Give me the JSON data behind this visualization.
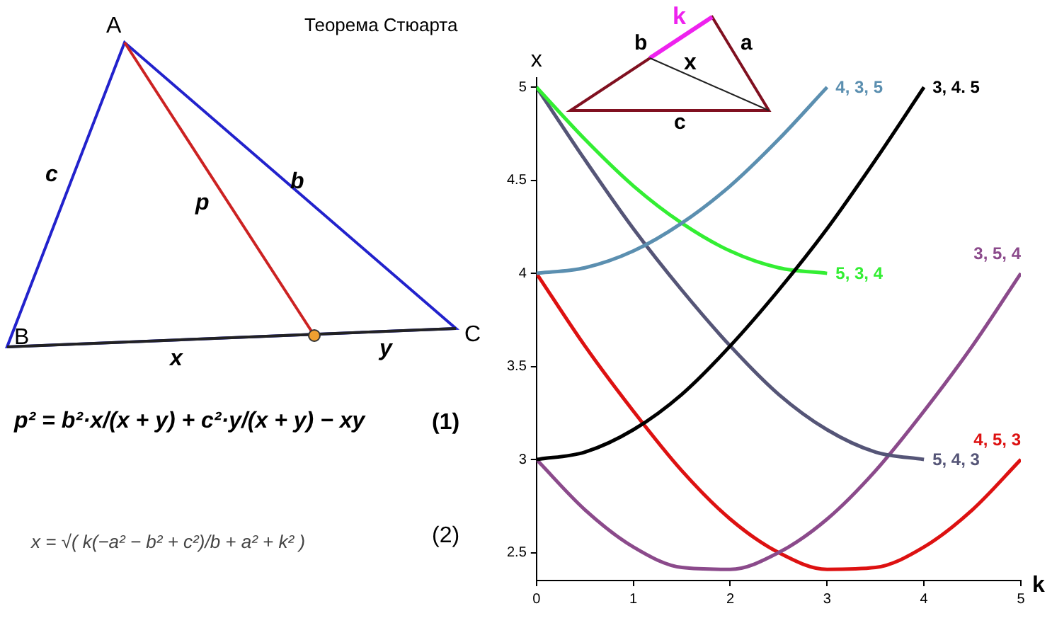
{
  "chart_data": {
    "type": "line",
    "title": "Теорема Стюарта",
    "xlabel": "k",
    "ylabel": "x",
    "xlim": [
      0,
      5
    ],
    "xticks": [
      0,
      1,
      2,
      3,
      4,
      5
    ],
    "ylim": [
      2.35,
      5.05
    ],
    "yticks": [
      2.5,
      3,
      3.5,
      4,
      4.5,
      5
    ],
    "grid": false,
    "legend": false,
    "marker": "none",
    "line_style": "solid",
    "series": [
      {
        "name": "4, 3, 5",
        "color": "#5b8fb0",
        "x": [
          0,
          0.5,
          1,
          1.5,
          2,
          2.5,
          3
        ],
        "values": [
          4,
          4.03,
          4.12,
          4.27,
          4.47,
          4.72,
          5
        ]
      },
      {
        "name": "3, 4. 5",
        "color": "#000000",
        "x": [
          0,
          0.5,
          1,
          1.5,
          2,
          2.5,
          3,
          3.5,
          4
        ],
        "values": [
          3,
          3.04,
          3.16,
          3.35,
          3.61,
          3.91,
          4.24,
          4.61,
          5
        ]
      },
      {
        "name": "5, 3, 4",
        "color": "#33ee33",
        "x": [
          0,
          0.5,
          1,
          1.5,
          2,
          2.5,
          3
        ],
        "values": [
          5,
          4.72,
          4.47,
          4.27,
          4.12,
          4.03,
          4
        ]
      },
      {
        "name": "5, 4, 3",
        "color": "#555577",
        "x": [
          0,
          0.5,
          1,
          1.5,
          2,
          2.5,
          3,
          3.5,
          4
        ],
        "values": [
          5,
          4.61,
          4.24,
          3.91,
          3.61,
          3.35,
          3.16,
          3.04,
          3
        ]
      },
      {
        "name": "3, 5, 4",
        "color": "#8b4a8b",
        "x": [
          0,
          0.5,
          1,
          1.5,
          2,
          2.5,
          3,
          3.5,
          4,
          4.5,
          5
        ],
        "values": [
          3,
          2.73,
          2.53,
          2.42,
          2.41,
          2.5,
          2.68,
          2.94,
          3.26,
          3.61,
          4
        ]
      },
      {
        "name": "4, 5, 3",
        "color": "#dd1111",
        "x": [
          0,
          0.5,
          1,
          1.5,
          2,
          2.5,
          3,
          3.5,
          4,
          4.5,
          5
        ],
        "values": [
          4,
          3.61,
          3.26,
          2.94,
          2.68,
          2.5,
          2.41,
          2.42,
          2.53,
          2.73,
          3
        ]
      }
    ],
    "annotations": [
      "A",
      "B",
      "C",
      "c",
      "b",
      "p",
      "x",
      "y",
      "p² = b²·x/(x + y) + c²·y/(x + y) − xy",
      "(1)",
      "x = √( k(−a² − b² + c²)/b + a² + k² )",
      "(2)",
      "k",
      "a",
      "b",
      "c",
      "x"
    ]
  }
}
